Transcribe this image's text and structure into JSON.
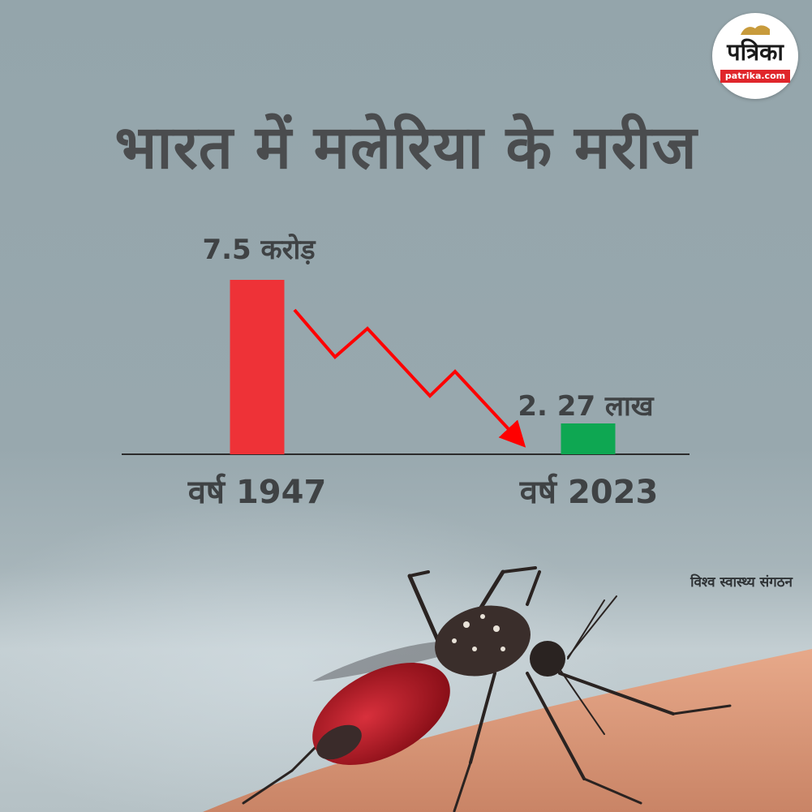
{
  "title": "भारत में मलेरिया के मरीज",
  "logo": {
    "name": "पत्रिका",
    "domain": "patrika.com"
  },
  "source": "विश्व स्वास्थ्य संगठन",
  "colors": {
    "bar_1947": "#ee3237",
    "bar_2023": "#0ea752",
    "trend_arrow": "#ff0000"
  },
  "chart_data": {
    "type": "bar",
    "categories": [
      "वर्ष 1947",
      "वर्ष 2023"
    ],
    "values": [
      75000000,
      227000
    ],
    "value_labels": [
      "7.5 करोड़",
      "2. 27 लाख"
    ],
    "trend": "decrease",
    "grid": false,
    "legend": "none"
  }
}
